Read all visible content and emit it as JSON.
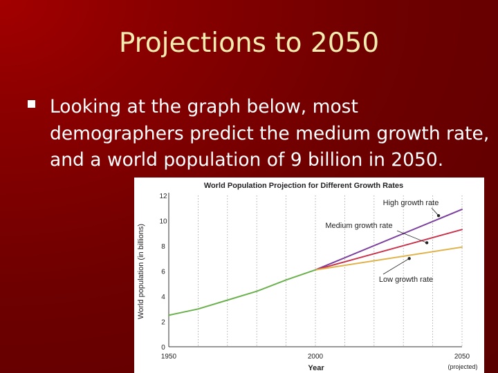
{
  "slide": {
    "title": "Projections to 2050",
    "bullet_text": "Looking at the graph below, most demographers predict the medium growth rate, and a world population of 9 billion in 2050."
  },
  "colors": {
    "background": "#8a0000",
    "title": "#f2ecb0",
    "bullet_text": "#ffffff",
    "high_series": "#7b3f9e",
    "medium_series": "#c8324a",
    "low_series": "#e0b24a",
    "historical_series": "#6ab04c"
  },
  "chart_data": {
    "type": "line",
    "title": "World Population Projection for Different Growth Rates",
    "ylabel": "World population (in billions)",
    "xlabel": "Year",
    "x_tick_labels": [
      "1950",
      "2000",
      "2050"
    ],
    "x_tick_sublabel": "(projected)",
    "y_ticks": [
      0,
      2,
      4,
      6,
      8,
      10,
      12
    ],
    "xlim": [
      1950,
      2050
    ],
    "ylim": [
      0,
      12
    ],
    "grid": "vertical dotted",
    "series": [
      {
        "name": "High growth rate",
        "color": "#7b3f9e",
        "x": [
          2000,
          2050
        ],
        "values": [
          6.1,
          10.9
        ]
      },
      {
        "name": "Medium growth rate",
        "color": "#c8324a",
        "x": [
          2000,
          2050
        ],
        "values": [
          6.1,
          9.3
        ]
      },
      {
        "name": "Low growth rate",
        "color": "#e0b24a",
        "x": [
          2000,
          2050
        ],
        "values": [
          6.1,
          7.9
        ]
      },
      {
        "color": "#6ab04c",
        "x": [
          1950,
          1960,
          1970,
          1980,
          1990,
          2000
        ],
        "values": [
          2.5,
          3.0,
          3.7,
          4.4,
          5.3,
          6.1
        ]
      }
    ],
    "annotations": [
      {
        "label": "High growth rate",
        "x": 2042,
        "y": 10.4
      },
      {
        "label": "Medium growth rate",
        "x": 2038,
        "y": 8.25
      },
      {
        "label": "Low growth rate",
        "x": 2032,
        "y": 7.0
      }
    ]
  }
}
